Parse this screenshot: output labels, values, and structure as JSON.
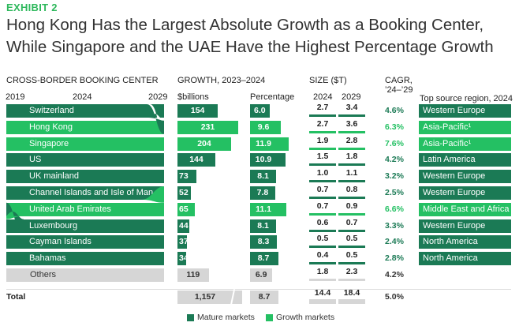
{
  "exhibit": "EXHIBIT 2",
  "title_lines": [
    "Hong Kong Has the Largest Absolute Growth as a Booking Center,",
    "While Singapore and the UAE Have the Highest Percentage Growth"
  ],
  "colors": {
    "mature": "#1b7a55",
    "growth": "#24c063",
    "other": "#d6d6d6",
    "accent": "#2eb85c"
  },
  "headers": {
    "center": "CROSS-BORDER BOOKING CENTER",
    "growth": "GROWTH, 2023–2024",
    "size": "SIZE ($T)",
    "cagr_line1": "CAGR,",
    "cagr_line2": "’24–’29",
    "billions": "$billions",
    "percentage": "Percentage",
    "y2024": "2024",
    "y2029": "2029",
    "region": "Top source region, 2024",
    "year2019": "2019",
    "year2024": "2024",
    "year2029": "2029"
  },
  "chart_data": {
    "type": "table",
    "rows": [
      {
        "name": "Switzerland",
        "market": "mature",
        "growth_billions": 154,
        "growth_pct": "6.0",
        "size_2024": "2.7",
        "size_2029": "3.4",
        "cagr": "4.6%",
        "region": "Western Europe"
      },
      {
        "name": "Hong Kong",
        "market": "growth",
        "growth_billions": 231,
        "growth_pct": "9.6",
        "size_2024": "2.7",
        "size_2029": "3.6",
        "cagr": "6.3%",
        "region": "Asia-Pacific¹"
      },
      {
        "name": "Singapore",
        "market": "growth",
        "growth_billions": 204,
        "growth_pct": "11.9",
        "size_2024": "1.9",
        "size_2029": "2.8",
        "cagr": "7.6%",
        "region": "Asia-Pacific¹"
      },
      {
        "name": "US",
        "market": "mature",
        "growth_billions": 144,
        "growth_pct": "10.9",
        "size_2024": "1.5",
        "size_2029": "1.8",
        "cagr": "4.2%",
        "region": "Latin America"
      },
      {
        "name": "UK mainland",
        "market": "mature",
        "growth_billions": 73,
        "growth_pct": "8.1",
        "size_2024": "1.0",
        "size_2029": "1.1",
        "cagr": "3.2%",
        "region": "Western Europe"
      },
      {
        "name": "Channel Islands and Isle of Man",
        "market": "mature",
        "growth_billions": 52,
        "growth_pct": "7.8",
        "size_2024": "0.7",
        "size_2029": "0.8",
        "cagr": "2.5%",
        "region": "Western Europe"
      },
      {
        "name": "United Arab Emirates",
        "market": "growth",
        "growth_billions": 65,
        "growth_pct": "11.1",
        "size_2024": "0.7",
        "size_2029": "0.9",
        "cagr": "6.6%",
        "region": "Middle East and Africa"
      },
      {
        "name": "Luxembourg",
        "market": "mature",
        "growth_billions": 44,
        "growth_pct": "8.1",
        "size_2024": "0.6",
        "size_2029": "0.7",
        "cagr": "3.3%",
        "region": "Western Europe"
      },
      {
        "name": "Cayman Islands",
        "market": "mature",
        "growth_billions": 37,
        "growth_pct": "8.3",
        "size_2024": "0.5",
        "size_2029": "0.5",
        "cagr": "2.4%",
        "region": "North America"
      },
      {
        "name": "Bahamas",
        "market": "mature",
        "growth_billions": 34,
        "growth_pct": "8.7",
        "size_2024": "0.4",
        "size_2029": "0.5",
        "cagr": "2.8%",
        "region": "North America"
      },
      {
        "name": "Others",
        "market": "other",
        "growth_billions": 119,
        "growth_pct": "6.9",
        "size_2024": "1.8",
        "size_2029": "2.3",
        "cagr": "4.2%",
        "region": ""
      }
    ],
    "total": {
      "name": "Total",
      "growth_billions": "1,157",
      "growth_pct": "8.7",
      "size_2024": "14.4",
      "size_2029": "18.4",
      "cagr": "5.0%"
    },
    "legend": [
      {
        "name": "Mature markets",
        "market": "mature"
      },
      {
        "name": "Growth markets",
        "market": "growth"
      }
    ]
  }
}
